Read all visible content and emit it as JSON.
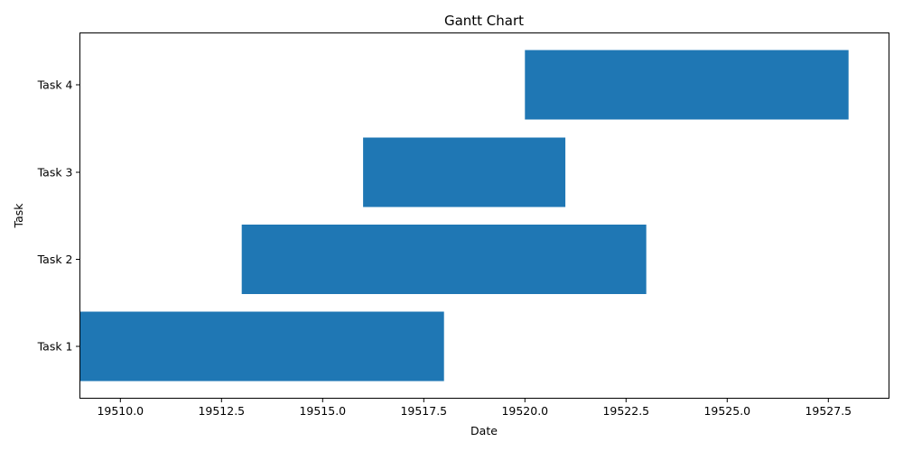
{
  "chart_data": {
    "type": "bar",
    "orientation": "horizontal",
    "title": "Gantt Chart",
    "xlabel": "Date",
    "ylabel": "Task",
    "categories": [
      "Task 1",
      "Task 2",
      "Task 3",
      "Task 4"
    ],
    "start": [
      19509,
      19513,
      19516,
      19520
    ],
    "end": [
      19518,
      19523,
      19521,
      19528
    ],
    "xlim": [
      19509,
      19529
    ],
    "xticks": [
      19510.0,
      19512.5,
      19515.0,
      19517.5,
      19520.0,
      19522.5,
      19525.0,
      19527.5
    ],
    "xtick_labels": [
      "19510.0",
      "19512.5",
      "19515.0",
      "19517.5",
      "19520.0",
      "19522.5",
      "19525.0",
      "19527.5"
    ],
    "grid": false,
    "bar_color": "#1f77b4"
  }
}
